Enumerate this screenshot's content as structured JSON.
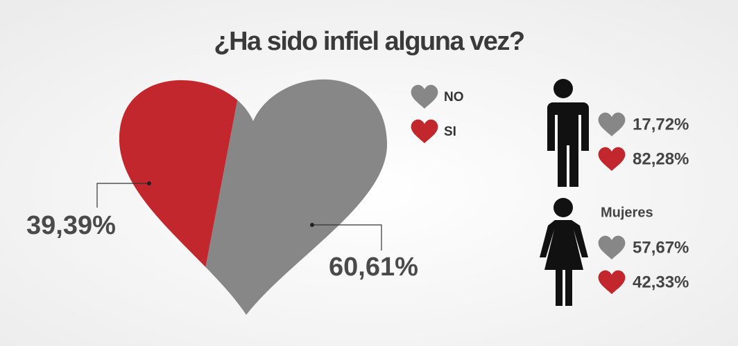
{
  "chart_data": {
    "type": "pie",
    "title": "¿Ha sido infiel alguna vez?",
    "categories": [
      "NO",
      "SI"
    ],
    "values": [
      60.61,
      39.39
    ],
    "value_labels": [
      "60,61%",
      "39,39%"
    ],
    "colors": [
      "#878787",
      "#c1272d"
    ],
    "groups": [
      {
        "values": [
          17.72,
          82.28
        ],
        "value_labels": [
          "17,72%",
          "82,28%"
        ]
      },
      {
        "name": "Mujeres",
        "values": [
          57.67,
          42.33
        ],
        "value_labels": [
          "57,67%",
          "42,33%"
        ]
      }
    ]
  }
}
